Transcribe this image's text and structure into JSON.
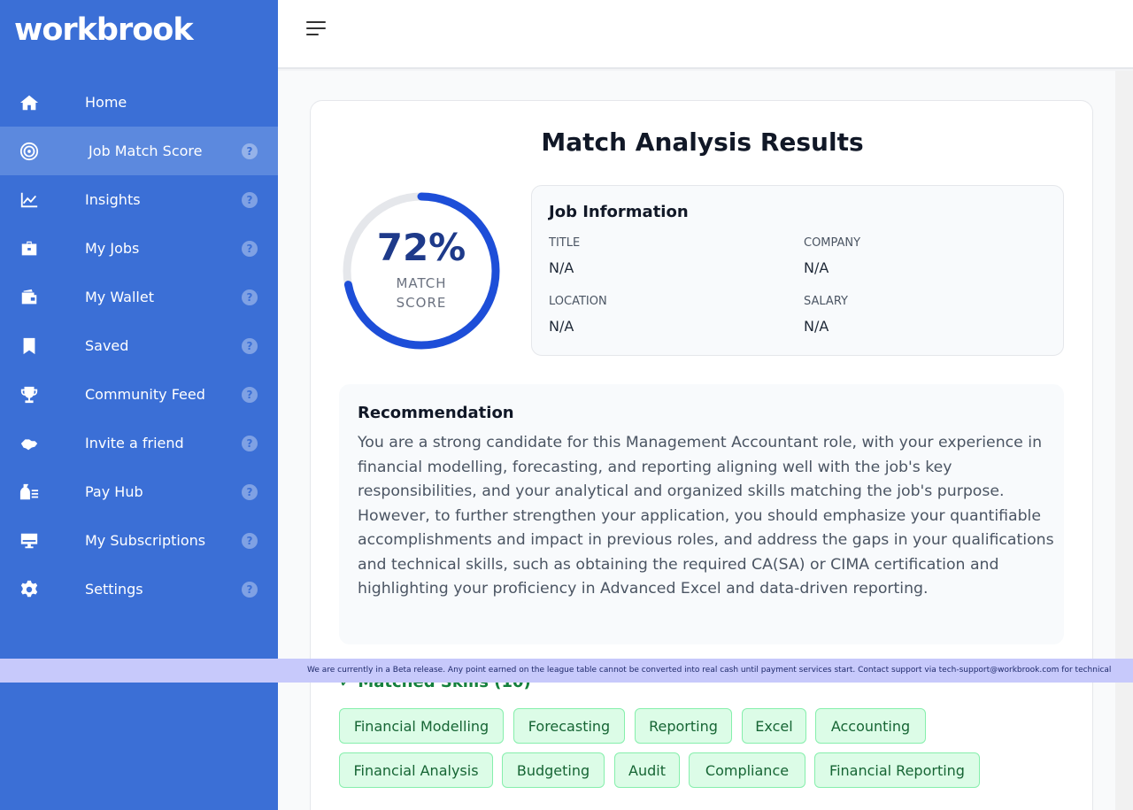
{
  "brand": {
    "logo": "workbrook"
  },
  "sidebar": {
    "items": [
      {
        "label": "Home",
        "icon": "home-icon",
        "active": false,
        "help": false
      },
      {
        "label": "Job Match Score",
        "icon": "target-icon",
        "active": true,
        "help": true
      },
      {
        "label": "Insights",
        "icon": "chart-line-icon",
        "active": false,
        "help": true
      },
      {
        "label": "My Jobs",
        "icon": "briefcase-icon",
        "active": false,
        "help": true
      },
      {
        "label": "My Wallet",
        "icon": "wallet-icon",
        "active": false,
        "help": true
      },
      {
        "label": "Saved",
        "icon": "bookmark-icon",
        "active": false,
        "help": true
      },
      {
        "label": "Community Feed",
        "icon": "trophy-icon",
        "active": false,
        "help": true
      },
      {
        "label": "Invite a friend",
        "icon": "handshake-icon",
        "active": false,
        "help": true
      },
      {
        "label": "Pay Hub",
        "icon": "money-bag-icon",
        "active": false,
        "help": true
      },
      {
        "label": "My Subscriptions",
        "icon": "monitor-icon",
        "active": false,
        "help": true
      },
      {
        "label": "Settings",
        "icon": "gear-icon",
        "active": false,
        "help": true
      }
    ],
    "help_glyph": "?"
  },
  "main": {
    "title": "Match Analysis Results",
    "score": {
      "value": 72,
      "display": "72%",
      "label_line1": "MATCH",
      "label_line2": "SCORE"
    },
    "job_info": {
      "title": "Job Information",
      "fields": [
        {
          "label": "TITLE",
          "value": "N/A"
        },
        {
          "label": "COMPANY",
          "value": "N/A"
        },
        {
          "label": "LOCATION",
          "value": "N/A"
        },
        {
          "label": "SALARY",
          "value": "N/A"
        }
      ]
    },
    "recommendation": {
      "title": "Recommendation",
      "text": "You are a strong candidate for this Management Accountant role, with your experience in financial modelling, forecasting, and reporting aligning well with the job's key responsibilities, and your analytical and organized skills matching the job's purpose. However, to further strengthen your application, you should emphasize your quantifiable accomplishments and impact in previous roles, and address the gaps in your qualifications and technical skills, such as obtaining the required CA(SA) or CIMA certification and highlighting your proficiency in Advanced Excel and data-driven reporting."
    },
    "matched_skills": {
      "title": "✓ Matched Skills (10)",
      "skills": [
        "Financial Modelling",
        "Forecasting",
        "Reporting",
        "Excel",
        "Accounting",
        "Financial Analysis",
        "Budgeting",
        "Audit",
        "Compliance",
        "Financial Reporting"
      ]
    }
  },
  "banner": {
    "text": "We are currently in a Beta release. Any point earned on the league table cannot be converted into real cash until payment services start. Contact support via tech-support@workbrook.com for technical"
  },
  "colors": {
    "sidebar": "#3b6fd6",
    "sidebar_active": "#5c89de",
    "gauge": "#1d4ed8",
    "gauge_track": "#e5e7eb",
    "banner": "#c7c9fb",
    "tag_bg": "#dcfce7"
  }
}
